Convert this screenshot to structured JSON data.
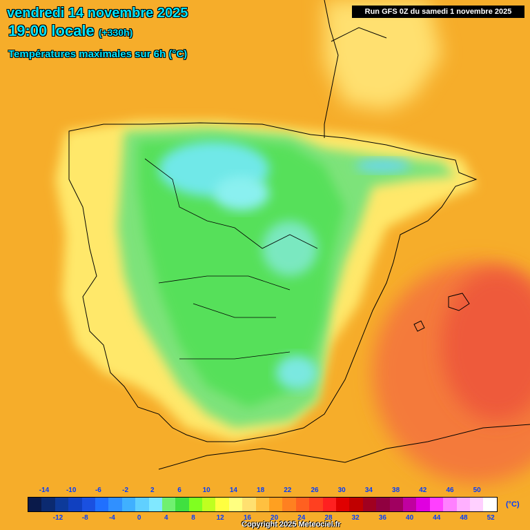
{
  "header": {
    "date_line": "vendredi 14 novembre 2025",
    "time_line": "19:00 locale",
    "offset": "(+330h)",
    "parameter": "Températures maximales sur 6h (°C)"
  },
  "run_info": "Run GFS 0Z du samedi 1 novembre 2025",
  "legend": {
    "unit": "(°C)",
    "top_ticks": [
      "-14",
      "-10",
      "-6",
      "-2",
      "2",
      "6",
      "10",
      "14",
      "18",
      "22",
      "26",
      "30",
      "34",
      "38",
      "42",
      "46",
      "50"
    ],
    "bottom_ticks": [
      "-12",
      "-8",
      "-4",
      "0",
      "4",
      "8",
      "12",
      "16",
      "20",
      "24",
      "28",
      "32",
      "36",
      "40",
      "44",
      "48",
      "52"
    ],
    "colors": [
      "#0a1a4a",
      "#0b2a70",
      "#0d3a9a",
      "#1040c0",
      "#1a50e0",
      "#2070ff",
      "#3090ff",
      "#40b0ff",
      "#60d0ff",
      "#80e8ff",
      "#70f070",
      "#40e040",
      "#80ff20",
      "#c0ff20",
      "#ffff40",
      "#ffff80",
      "#ffe070",
      "#ffc040",
      "#ffa020",
      "#ff8020",
      "#ff6020",
      "#ff4020",
      "#ff2020",
      "#e00000",
      "#c00000",
      "#a00020",
      "#900040",
      "#a00060",
      "#c000a0",
      "#e000e0",
      "#ff40ff",
      "#ff80ff",
      "#ffb0ff",
      "#ffd0ff",
      "#ffffff"
    ]
  },
  "copyright": "Copyright 2025 Meteociel.fr",
  "icons": {
    "coastline": "coastline-outline",
    "borders": "border-outline"
  }
}
